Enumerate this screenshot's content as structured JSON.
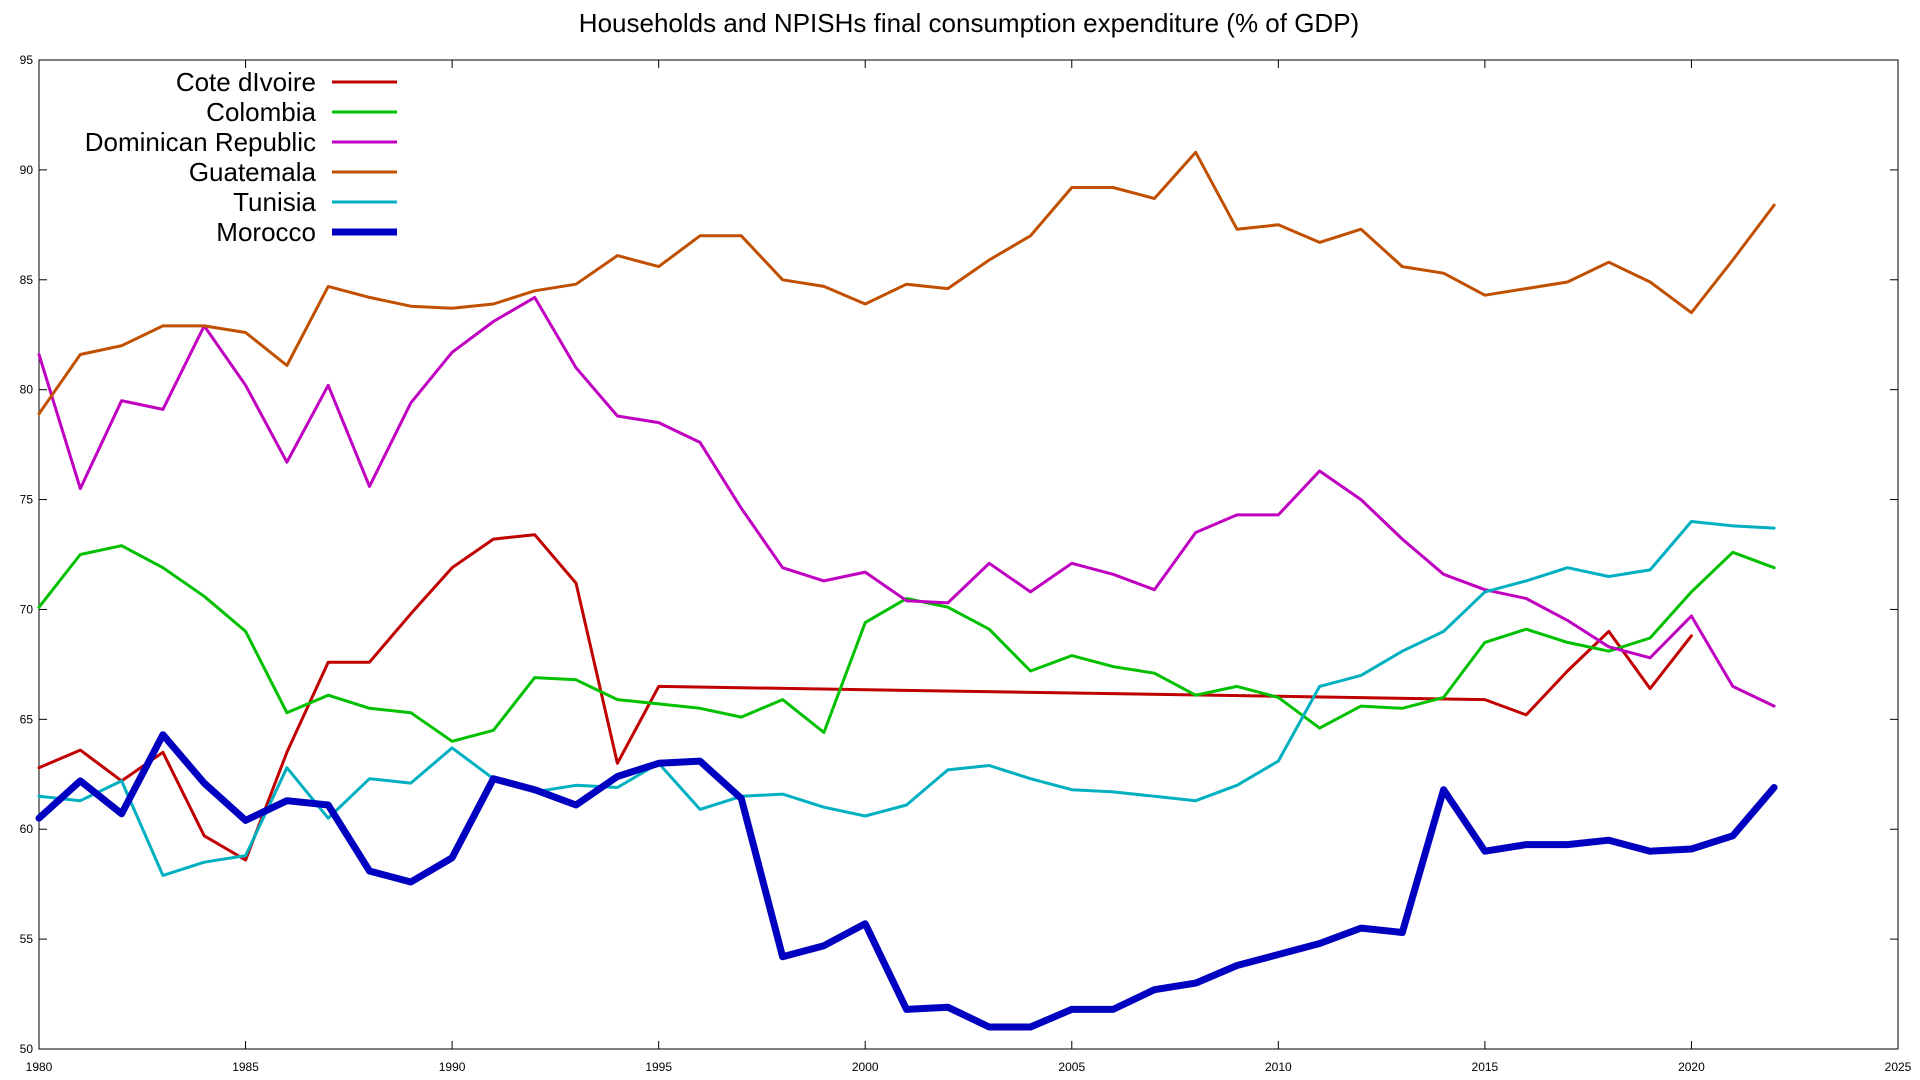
{
  "chart_data": {
    "type": "line",
    "title": "Households and NPISHs final consumption expenditure (% of GDP)",
    "xlabel": "",
    "ylabel": "",
    "xlim": [
      1980,
      2025
    ],
    "ylim": [
      50,
      95
    ],
    "xticks": [
      1980,
      1985,
      1990,
      1995,
      2000,
      2005,
      2010,
      2015,
      2020,
      2025
    ],
    "yticks": [
      50,
      55,
      60,
      65,
      70,
      75,
      80,
      85,
      90,
      95
    ],
    "grid": false,
    "legend_position": "top-left",
    "series": [
      {
        "name": "Cote dIvoire",
        "color": "#c00000",
        "width": 3,
        "points": [
          [
            1980,
            62.8
          ],
          [
            1981,
            63.6
          ],
          [
            1982,
            62.2
          ],
          [
            1983,
            63.5
          ],
          [
            1984,
            59.7
          ],
          [
            1985,
            58.6
          ],
          [
            1986,
            63.5
          ],
          [
            1987,
            67.6
          ],
          [
            1988,
            67.6
          ],
          [
            1989,
            69.8
          ],
          [
            1990,
            71.9
          ],
          [
            1991,
            73.2
          ],
          [
            1992,
            73.4
          ],
          [
            1993,
            71.2
          ],
          [
            1994,
            63.0
          ],
          [
            1995,
            66.5
          ],
          [
            2015,
            65.9
          ],
          [
            2016,
            65.2
          ],
          [
            2017,
            67.2
          ],
          [
            2018,
            69.0
          ],
          [
            2019,
            66.4
          ],
          [
            2020,
            68.8
          ]
        ]
      },
      {
        "name": "Colombia",
        "color": "#00c000",
        "width": 3,
        "points": [
          [
            1980,
            70.1
          ],
          [
            1981,
            72.5
          ],
          [
            1982,
            72.9
          ],
          [
            1983,
            71.9
          ],
          [
            1984,
            70.6
          ],
          [
            1985,
            69.0
          ],
          [
            1986,
            65.3
          ],
          [
            1987,
            66.1
          ],
          [
            1988,
            65.5
          ],
          [
            1989,
            65.3
          ],
          [
            1990,
            64.0
          ],
          [
            1991,
            64.5
          ],
          [
            1992,
            66.9
          ],
          [
            1993,
            66.8
          ],
          [
            1994,
            65.9
          ],
          [
            1995,
            65.7
          ],
          [
            1996,
            65.5
          ],
          [
            1997,
            65.1
          ],
          [
            1998,
            65.9
          ],
          [
            1999,
            64.4
          ],
          [
            2000,
            69.4
          ],
          [
            2001,
            70.5
          ],
          [
            2002,
            70.1
          ],
          [
            2003,
            69.1
          ],
          [
            2004,
            67.2
          ],
          [
            2005,
            67.9
          ],
          [
            2006,
            67.4
          ],
          [
            2007,
            67.1
          ],
          [
            2008,
            66.1
          ],
          [
            2009,
            66.5
          ],
          [
            2010,
            66.0
          ],
          [
            2011,
            64.6
          ],
          [
            2012,
            65.6
          ],
          [
            2013,
            65.5
          ],
          [
            2014,
            66.0
          ],
          [
            2015,
            68.5
          ],
          [
            2016,
            69.1
          ],
          [
            2017,
            68.5
          ],
          [
            2018,
            68.1
          ],
          [
            2019,
            68.7
          ],
          [
            2020,
            70.8
          ],
          [
            2021,
            72.6
          ],
          [
            2022,
            71.9
          ]
        ]
      },
      {
        "name": "Dominican Republic",
        "color": "#c000c0",
        "width": 3,
        "points": [
          [
            1980,
            81.6
          ],
          [
            1981,
            75.5
          ],
          [
            1982,
            79.5
          ],
          [
            1983,
            79.1
          ],
          [
            1984,
            82.9
          ],
          [
            1985,
            80.2
          ],
          [
            1986,
            76.7
          ],
          [
            1987,
            80.2
          ],
          [
            1988,
            75.6
          ],
          [
            1989,
            79.4
          ],
          [
            1990,
            81.7
          ],
          [
            1991,
            83.1
          ],
          [
            1992,
            84.2
          ],
          [
            1993,
            81.0
          ],
          [
            1994,
            78.8
          ],
          [
            1995,
            78.5
          ],
          [
            1996,
            77.6
          ],
          [
            1997,
            74.6
          ],
          [
            1998,
            71.9
          ],
          [
            1999,
            71.3
          ],
          [
            2000,
            71.7
          ],
          [
            2001,
            70.4
          ],
          [
            2002,
            70.3
          ],
          [
            2003,
            72.1
          ],
          [
            2004,
            70.8
          ],
          [
            2005,
            72.1
          ],
          [
            2006,
            71.6
          ],
          [
            2007,
            70.9
          ],
          [
            2008,
            73.5
          ],
          [
            2009,
            74.3
          ],
          [
            2010,
            74.3
          ],
          [
            2011,
            76.3
          ],
          [
            2012,
            75.0
          ],
          [
            2013,
            73.2
          ],
          [
            2014,
            71.6
          ],
          [
            2015,
            70.9
          ],
          [
            2016,
            70.5
          ],
          [
            2017,
            69.5
          ],
          [
            2018,
            68.3
          ],
          [
            2019,
            67.8
          ],
          [
            2020,
            69.7
          ],
          [
            2021,
            66.5
          ],
          [
            2022,
            65.6
          ]
        ]
      },
      {
        "name": "Guatemala",
        "color": "#c05000",
        "width": 3,
        "points": [
          [
            1980,
            78.9
          ],
          [
            1981,
            81.6
          ],
          [
            1982,
            82.0
          ],
          [
            1983,
            82.9
          ],
          [
            1984,
            82.9
          ],
          [
            1985,
            82.6
          ],
          [
            1986,
            81.1
          ],
          [
            1987,
            84.7
          ],
          [
            1988,
            84.2
          ],
          [
            1989,
            83.8
          ],
          [
            1990,
            83.7
          ],
          [
            1991,
            83.9
          ],
          [
            1992,
            84.5
          ],
          [
            1993,
            84.8
          ],
          [
            1994,
            86.1
          ],
          [
            1995,
            85.6
          ],
          [
            1996,
            87.0
          ],
          [
            1997,
            87.0
          ],
          [
            1998,
            85.0
          ],
          [
            1999,
            84.7
          ],
          [
            2000,
            83.9
          ],
          [
            2001,
            84.8
          ],
          [
            2002,
            84.6
          ],
          [
            2003,
            85.9
          ],
          [
            2004,
            87.0
          ],
          [
            2005,
            89.2
          ],
          [
            2006,
            89.2
          ],
          [
            2007,
            88.7
          ],
          [
            2008,
            90.8
          ],
          [
            2009,
            87.3
          ],
          [
            2010,
            87.5
          ],
          [
            2011,
            86.7
          ],
          [
            2012,
            87.3
          ],
          [
            2013,
            85.6
          ],
          [
            2014,
            85.3
          ],
          [
            2015,
            84.3
          ],
          [
            2016,
            84.6
          ],
          [
            2017,
            84.9
          ],
          [
            2018,
            85.8
          ],
          [
            2019,
            84.9
          ],
          [
            2020,
            83.5
          ],
          [
            2021,
            85.9
          ],
          [
            2022,
            88.4
          ]
        ]
      },
      {
        "name": "Tunisia",
        "color": "#00b0c0",
        "width": 3,
        "points": [
          [
            1980,
            61.5
          ],
          [
            1981,
            61.3
          ],
          [
            1982,
            62.2
          ],
          [
            1983,
            57.9
          ],
          [
            1984,
            58.5
          ],
          [
            1985,
            58.8
          ],
          [
            1986,
            62.8
          ],
          [
            1987,
            60.5
          ],
          [
            1988,
            62.3
          ],
          [
            1989,
            62.1
          ],
          [
            1990,
            63.7
          ],
          [
            1991,
            62.3
          ],
          [
            1992,
            61.7
          ],
          [
            1993,
            62.0
          ],
          [
            1994,
            61.9
          ],
          [
            1995,
            63.0
          ],
          [
            1996,
            60.9
          ],
          [
            1997,
            61.5
          ],
          [
            1998,
            61.6
          ],
          [
            1999,
            61.0
          ],
          [
            2000,
            60.6
          ],
          [
            2001,
            61.1
          ],
          [
            2002,
            62.7
          ],
          [
            2003,
            62.9
          ],
          [
            2004,
            62.3
          ],
          [
            2005,
            61.8
          ],
          [
            2006,
            61.7
          ],
          [
            2007,
            61.5
          ],
          [
            2008,
            61.3
          ],
          [
            2009,
            62.0
          ],
          [
            2010,
            63.1
          ],
          [
            2011,
            66.5
          ],
          [
            2012,
            67.0
          ],
          [
            2013,
            68.1
          ],
          [
            2014,
            69.0
          ],
          [
            2015,
            70.8
          ],
          [
            2016,
            71.3
          ],
          [
            2017,
            71.9
          ],
          [
            2018,
            71.5
          ],
          [
            2019,
            71.8
          ],
          [
            2020,
            74.0
          ],
          [
            2021,
            73.8
          ],
          [
            2022,
            73.7
          ]
        ]
      },
      {
        "name": "Morocco",
        "color": "#0000c0",
        "width": 7,
        "points": [
          [
            1980,
            60.5
          ],
          [
            1981,
            62.2
          ],
          [
            1982,
            60.7
          ],
          [
            1983,
            64.3
          ],
          [
            1984,
            62.1
          ],
          [
            1985,
            60.4
          ],
          [
            1986,
            61.3
          ],
          [
            1987,
            61.1
          ],
          [
            1988,
            58.1
          ],
          [
            1989,
            57.6
          ],
          [
            1990,
            58.7
          ],
          [
            1991,
            62.3
          ],
          [
            1992,
            61.8
          ],
          [
            1993,
            61.1
          ],
          [
            1994,
            62.4
          ],
          [
            1995,
            63.0
          ],
          [
            1996,
            63.1
          ],
          [
            1997,
            61.4
          ],
          [
            1998,
            54.2
          ],
          [
            1999,
            54.7
          ],
          [
            2000,
            55.7
          ],
          [
            2001,
            51.8
          ],
          [
            2002,
            51.9
          ],
          [
            2003,
            51.0
          ],
          [
            2004,
            51.0
          ],
          [
            2005,
            51.8
          ],
          [
            2006,
            51.8
          ],
          [
            2007,
            52.7
          ],
          [
            2008,
            53.0
          ],
          [
            2009,
            53.8
          ],
          [
            2010,
            54.3
          ],
          [
            2011,
            54.8
          ],
          [
            2012,
            55.5
          ],
          [
            2013,
            55.3
          ],
          [
            2014,
            61.8
          ],
          [
            2015,
            59.0
          ],
          [
            2016,
            59.3
          ],
          [
            2017,
            59.3
          ],
          [
            2018,
            59.5
          ],
          [
            2019,
            59.0
          ],
          [
            2020,
            59.1
          ],
          [
            2021,
            59.7
          ],
          [
            2022,
            61.9
          ]
        ]
      }
    ]
  }
}
